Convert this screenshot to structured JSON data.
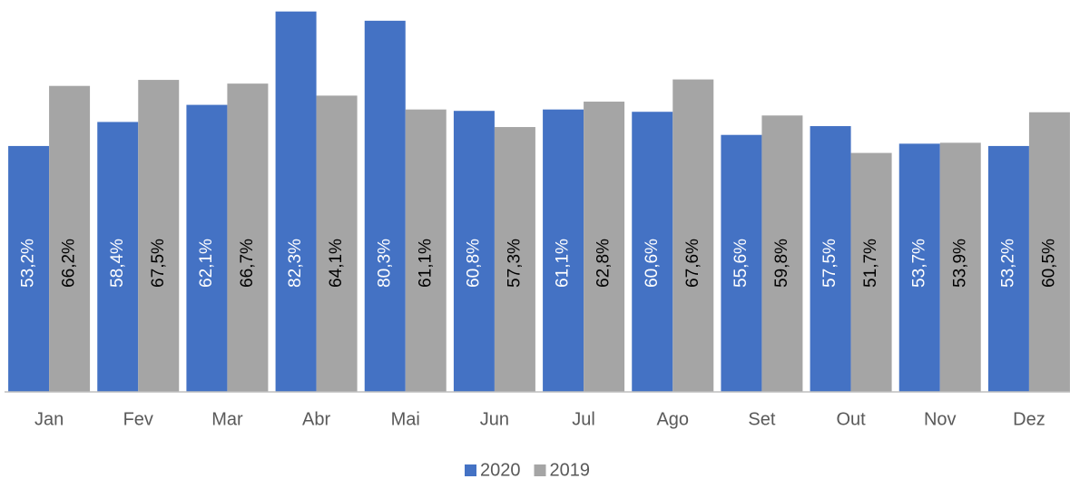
{
  "chart_data": {
    "type": "bar",
    "categories": [
      "Jan",
      "Fev",
      "Mar",
      "Abr",
      "Mai",
      "Jun",
      "Jul",
      "Ago",
      "Set",
      "Out",
      "Nov",
      "Dez"
    ],
    "series": [
      {
        "name": "2020",
        "color": "#4472c4",
        "values": [
          53.2,
          58.4,
          62.1,
          82.3,
          80.3,
          60.8,
          61.1,
          60.6,
          55.6,
          57.5,
          53.7,
          53.2
        ],
        "value_labels": [
          "53,2%",
          "58,4%",
          "62,1%",
          "82,3%",
          "80,3%",
          "60,8%",
          "61,1%",
          "60,6%",
          "55,6%",
          "57,5%",
          "53,7%",
          "53,2%"
        ]
      },
      {
        "name": "2019",
        "color": "#a5a5a5",
        "values": [
          66.2,
          67.5,
          66.7,
          64.1,
          61.1,
          57.3,
          62.8,
          67.6,
          59.8,
          51.7,
          53.9,
          60.5
        ],
        "value_labels": [
          "66,2%",
          "67,5%",
          "66,7%",
          "64,1%",
          "61,1%",
          "57,3%",
          "62,8%",
          "67,6%",
          "59,8%",
          "51,7%",
          "53,9%",
          "60,5%"
        ]
      }
    ],
    "ylim": [
      0,
      84
    ],
    "legend": "bottom"
  }
}
